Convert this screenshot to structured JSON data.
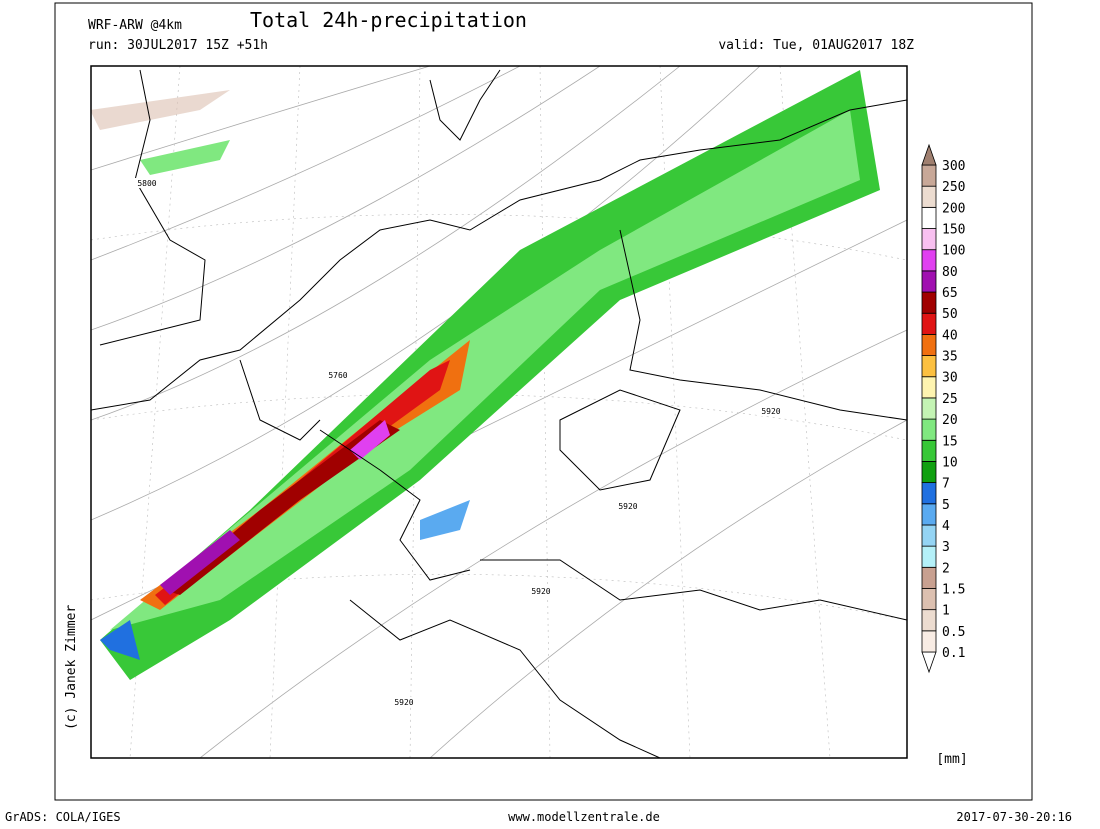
{
  "header": {
    "model": "WRF-ARW @4km",
    "title": "Total 24h-precipitation",
    "run": "run: 30JUL2017 15Z +51h",
    "valid": "valid: Tue, 01AUG2017 18Z"
  },
  "colorbar": {
    "unit": "[mm]",
    "levels": [
      0.1,
      0.5,
      1,
      1.5,
      2,
      3,
      4,
      5,
      7,
      10,
      15,
      20,
      25,
      30,
      35,
      40,
      50,
      65,
      80,
      100,
      150,
      200,
      250,
      300
    ],
    "colors": [
      "#ffffff",
      "#f8ece4",
      "#ecdcd0",
      "#dcc0b0",
      "#c8a090",
      "#b4f0f8",
      "#94d4f4",
      "#5aaaf0",
      "#2070e0",
      "#10a010",
      "#38c838",
      "#80e880",
      "#c4f4b4",
      "#fef4b0",
      "#fcc040",
      "#f07010",
      "#e01414",
      "#a00000",
      "#a010b0",
      "#e040f0",
      "#f8c0f0",
      "#ffffff",
      "#ecdcd0",
      "#c8a898",
      "#a08070"
    ]
  },
  "contour_labels": [
    "5800",
    "5760",
    "5920",
    "5920",
    "5920",
    "5920"
  ],
  "credit": "(c) Janek Zimmer",
  "footer": {
    "left": "GrADS: COLA/IGES",
    "center": "www.modellzentrale.de",
    "right": "2017-07-30-20:16"
  }
}
